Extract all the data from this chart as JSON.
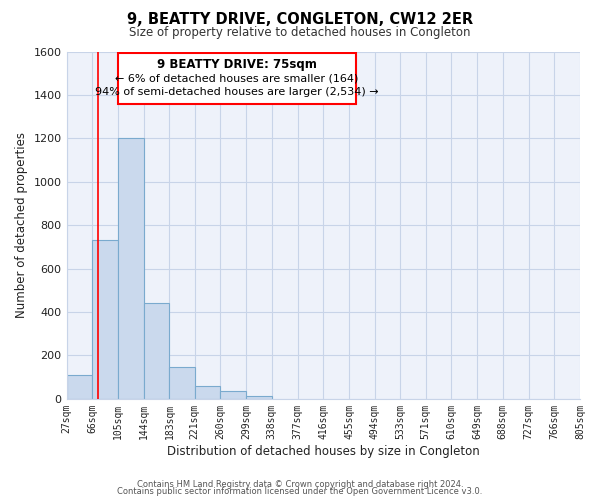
{
  "title": "9, BEATTY DRIVE, CONGLETON, CW12 2ER",
  "subtitle": "Size of property relative to detached houses in Congleton",
  "xlabel": "Distribution of detached houses by size in Congleton",
  "ylabel": "Number of detached properties",
  "bin_edges": [
    27,
    66,
    105,
    144,
    183,
    221,
    260,
    299,
    338,
    377,
    416,
    455,
    494,
    533,
    571,
    610,
    649,
    688,
    727,
    766,
    805
  ],
  "bar_heights": [
    110,
    730,
    1200,
    440,
    145,
    60,
    35,
    15,
    0,
    0,
    0,
    0,
    0,
    0,
    0,
    0,
    0,
    0,
    0,
    0
  ],
  "bar_facecolor": "#cad9ed",
  "bar_edgecolor": "#7aaace",
  "x_tick_labels": [
    "27sqm",
    "66sqm",
    "105sqm",
    "144sqm",
    "183sqm",
    "221sqm",
    "260sqm",
    "299sqm",
    "338sqm",
    "377sqm",
    "416sqm",
    "455sqm",
    "494sqm",
    "533sqm",
    "571sqm",
    "610sqm",
    "649sqm",
    "688sqm",
    "727sqm",
    "766sqm",
    "805sqm"
  ],
  "ylim": [
    0,
    1600
  ],
  "xlim": [
    27,
    805
  ],
  "red_line_x": 75,
  "annotation_title": "9 BEATTY DRIVE: 75sqm",
  "annotation_line1": "← 6% of detached houses are smaller (164)",
  "annotation_line2": "94% of semi-detached houses are larger (2,534) →",
  "grid_color": "#c8d4e8",
  "background_color": "#eef2fa",
  "yticks": [
    0,
    200,
    400,
    600,
    800,
    1000,
    1200,
    1400,
    1600
  ],
  "footer_line1": "Contains HM Land Registry data © Crown copyright and database right 2024.",
  "footer_line2": "Contains public sector information licensed under the Open Government Licence v3.0."
}
